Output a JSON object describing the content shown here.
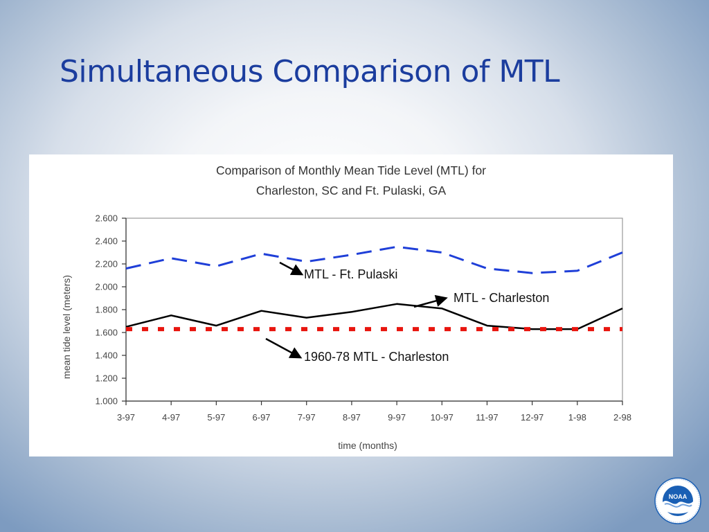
{
  "slide": {
    "title": "Simultaneous Comparison of MTL"
  },
  "logo": {
    "label": "NOAA",
    "ring_text": "NATIONAL OCEANIC AND ATMOSPHERIC ADMINISTRATION · U.S. DEPARTMENT OF COMMERCE"
  },
  "colors": {
    "title": "#1b3d9e",
    "pulaski": "#1f3fd8",
    "charleston": "#000000",
    "historic": "#e8150e",
    "noaa_blue": "#1a5fb4"
  },
  "chart_data": {
    "type": "line",
    "title_lines": [
      "Comparison of Monthly Mean Tide Level (MTL) for",
      "Charleston, SC and Ft. Pulaski, GA"
    ],
    "xlabel": "time (months)",
    "ylabel": "mean tide level (meters)",
    "categories": [
      "3-97",
      "4-97",
      "5-97",
      "6-97",
      "7-97",
      "8-97",
      "9-97",
      "10-97",
      "11-97",
      "12-97",
      "1-98",
      "2-98"
    ],
    "ylim": [
      1.0,
      2.6
    ],
    "yticks": [
      "1.000",
      "1.200",
      "1.400",
      "1.600",
      "1.800",
      "2.000",
      "2.200",
      "2.400",
      "2.600"
    ],
    "grid": false,
    "series": [
      {
        "name": "MTL - Ft. Pulaski",
        "style": "dashed",
        "color": "#1f3fd8",
        "values": [
          2.16,
          2.25,
          2.18,
          2.29,
          2.22,
          2.28,
          2.35,
          2.3,
          2.16,
          2.12,
          2.14,
          2.3
        ]
      },
      {
        "name": "MTL - Charleston",
        "style": "solid",
        "color": "#000000",
        "values": [
          1.65,
          1.75,
          1.66,
          1.79,
          1.73,
          1.78,
          1.85,
          1.81,
          1.66,
          1.63,
          1.63,
          1.81
        ]
      },
      {
        "name": "1960-78 MTL - Charleston",
        "style": "dotted",
        "color": "#e8150e",
        "values": [
          1.63,
          1.63,
          1.63,
          1.63,
          1.63,
          1.63,
          1.63,
          1.63,
          1.63,
          1.63,
          1.63,
          1.63
        ]
      }
    ],
    "annotations": [
      "MTL - Ft. Pulaski",
      "MTL - Charleston",
      "1960-78 MTL - Charleston"
    ]
  }
}
